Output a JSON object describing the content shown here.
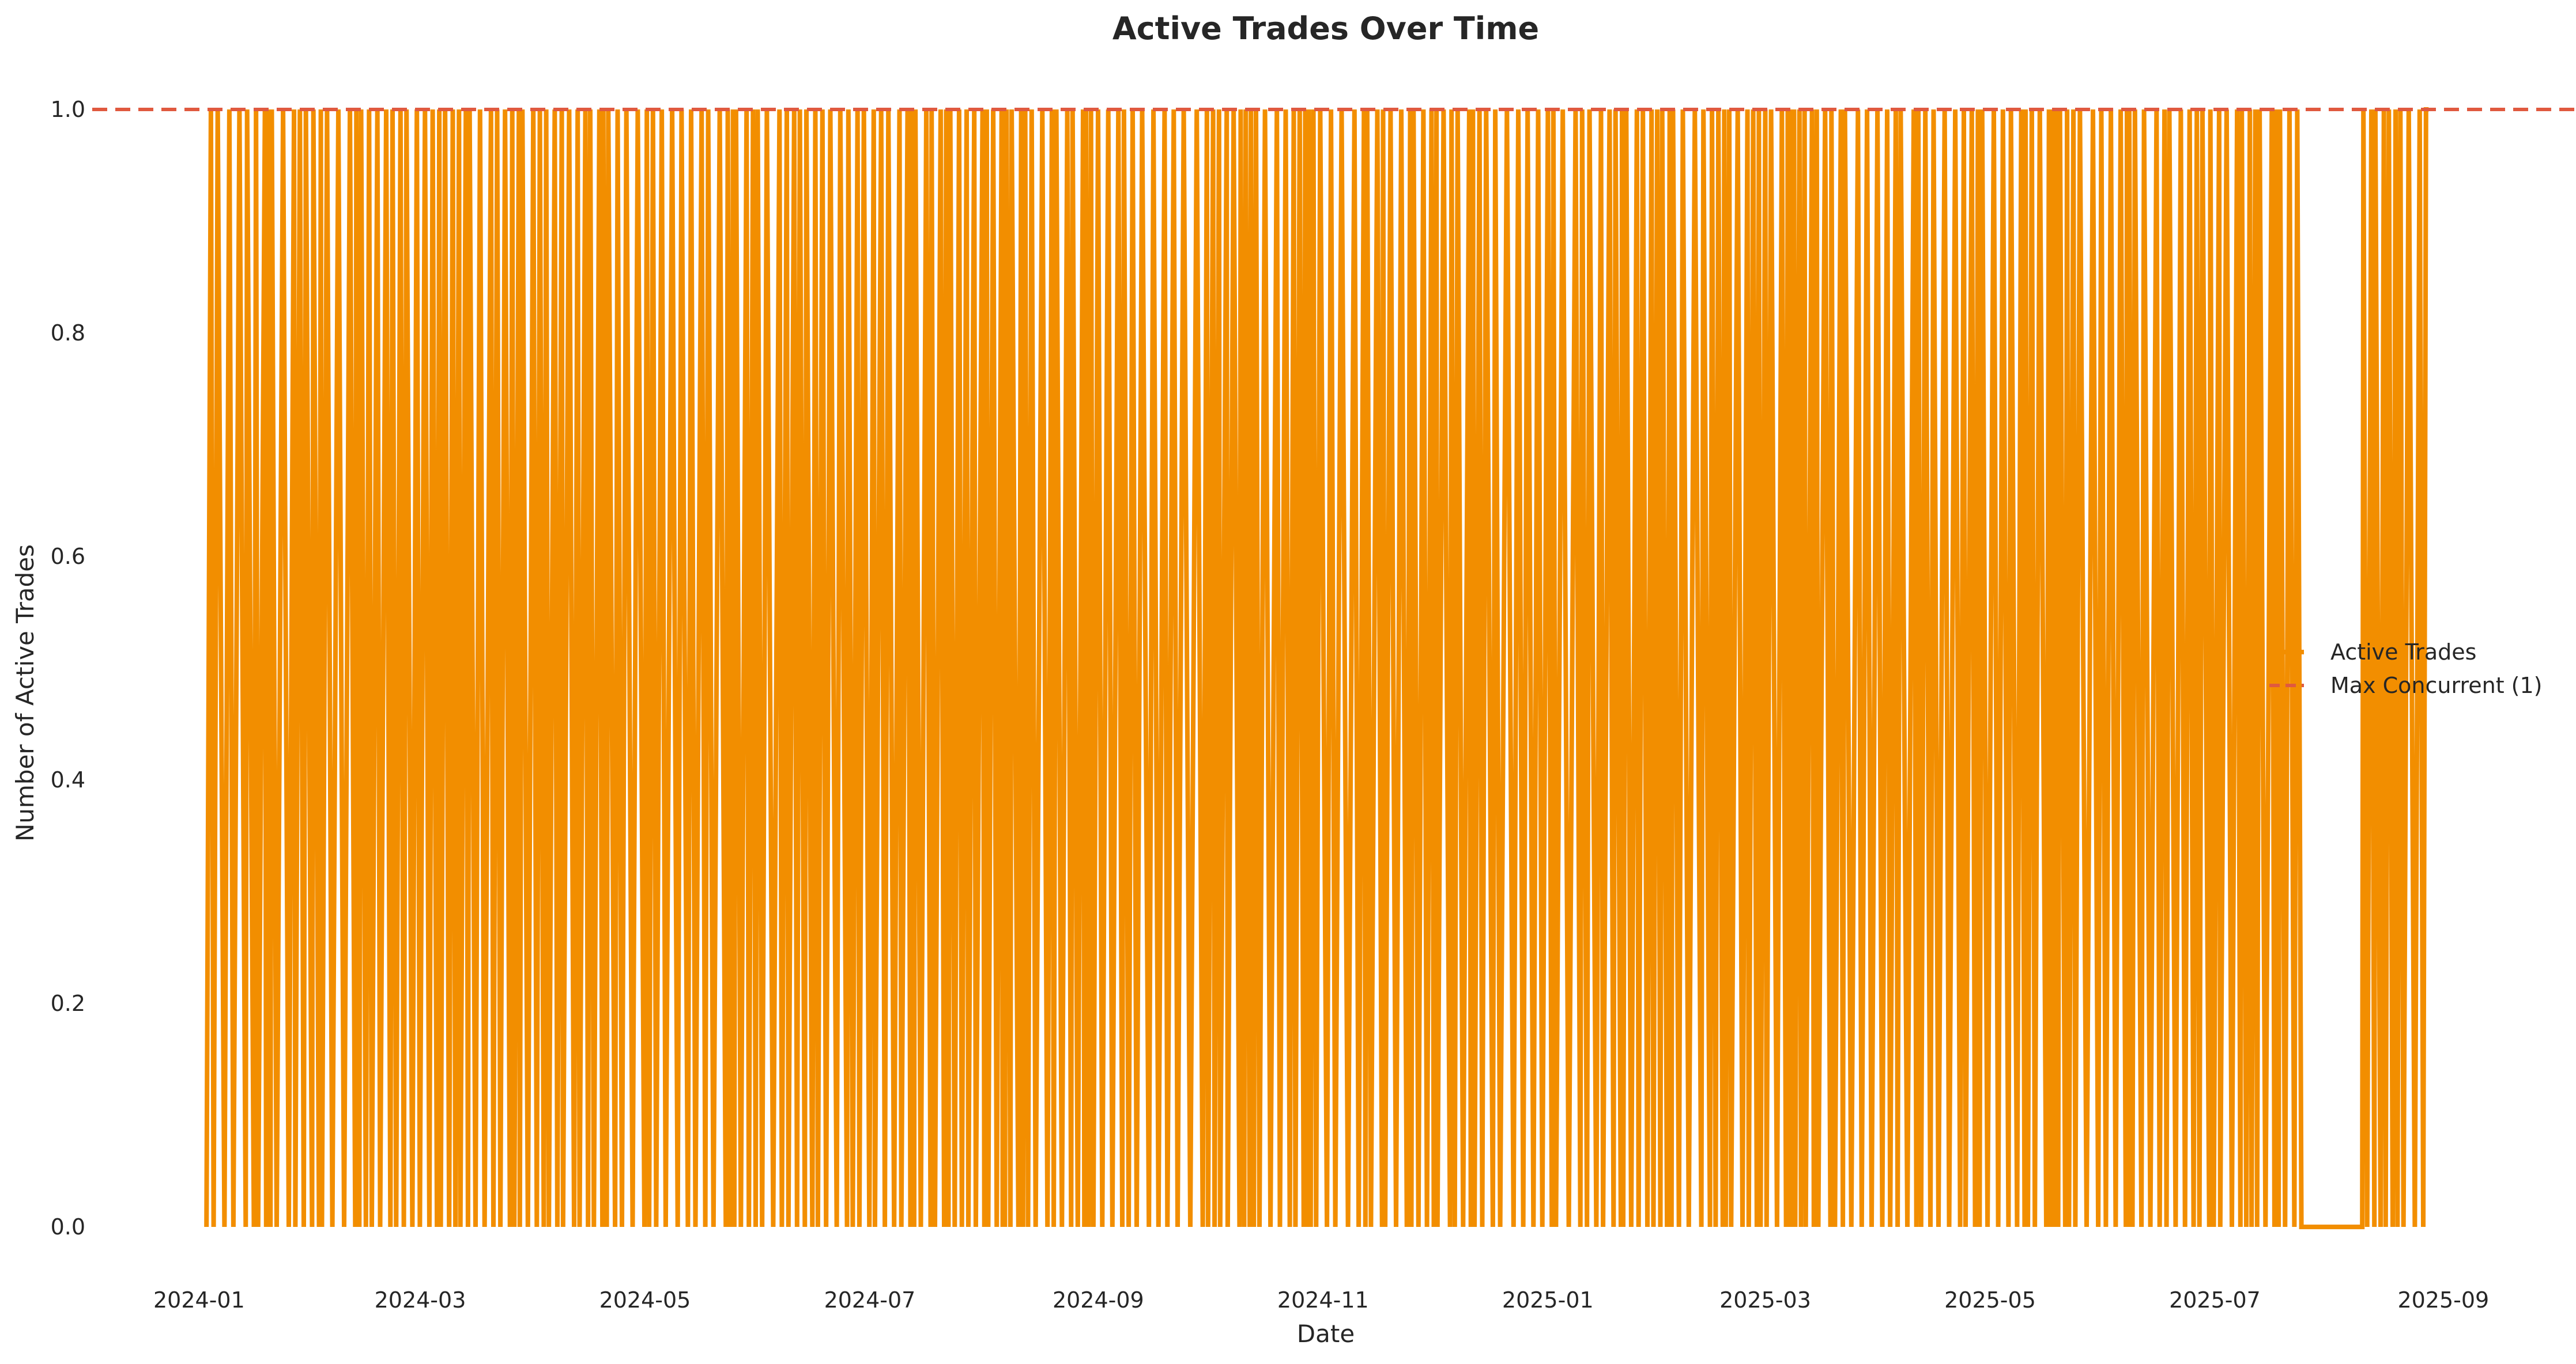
{
  "chart_data": {
    "type": "line",
    "title": "Active Trades Over Time",
    "xlabel": "Date",
    "ylabel": "Number of Active Trades",
    "xlim": [
      "2023-12-03",
      "2025-10-07"
    ],
    "ylim": [
      0,
      1.0
    ],
    "x_ticks": [
      "2024-01",
      "2024-03",
      "2024-05",
      "2024-07",
      "2024-09",
      "2024-11",
      "2025-01",
      "2025-03",
      "2025-05",
      "2025-07",
      "2025-09"
    ],
    "y_ticks": [
      "0.0",
      "0.2",
      "0.4",
      "0.6",
      "0.8",
      "1.0"
    ],
    "grid": false,
    "legend_position": "center-right",
    "series": [
      {
        "name": "Active Trades",
        "color": "#F28E00",
        "style": "solid",
        "x": [
          "2024-01-03",
          "2025-08-28"
        ],
        "values": [
          0,
          1
        ]
      }
    ],
    "reference_lines": [
      {
        "name": "Max Concurrent (1)",
        "value": 1.0,
        "color": "#E0593F",
        "style": "dashed"
      }
    ],
    "series_note_values": "Series alternates between 0 and 1 many times between the first and last date"
  }
}
